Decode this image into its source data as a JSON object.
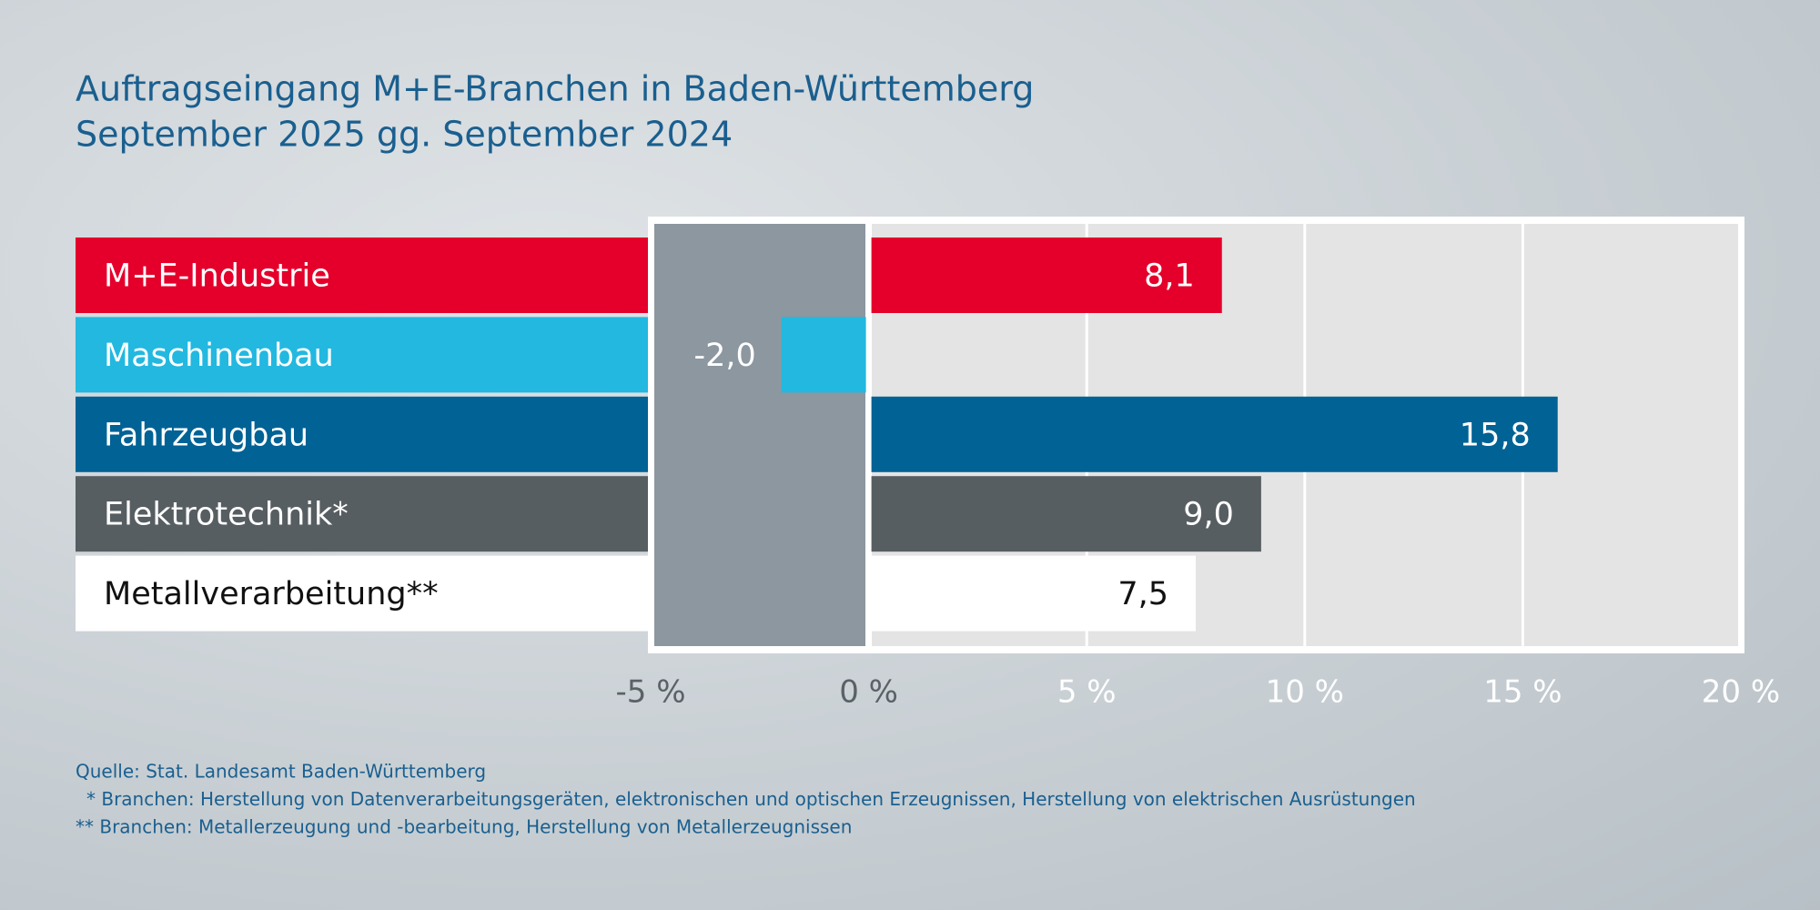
{
  "chart_data": {
    "type": "hbar",
    "title": "Auftragseingang M+E-Branchen in Baden-Württemberg",
    "subtitle": "September 2025 gg. September 2024",
    "categories": [
      "M+E-Industrie",
      "Maschinenbau",
      "Fahrzeugbau",
      "Elektrotechnik*",
      "Metallverarbeitung**"
    ],
    "values": [
      8.1,
      -2.0,
      15.8,
      9.0,
      7.5
    ],
    "value_labels": [
      "8,1",
      "-2,0",
      "15,8",
      "9,0",
      "7,5"
    ],
    "colors": [
      "#e4002b",
      "#22b8e0",
      "#006295",
      "#575e62",
      "#ffffff"
    ],
    "xlim": [
      -5,
      20
    ],
    "xticks": [
      {
        "value": -5,
        "label": "-5 %"
      },
      {
        "value": 0,
        "label": "0 %"
      },
      {
        "value": 5,
        "label": "5 %"
      },
      {
        "value": 10,
        "label": "10 %"
      },
      {
        "value": 15,
        "label": "15 %"
      },
      {
        "value": 20,
        "label": "20 %"
      }
    ],
    "grid": true,
    "notes": [
      "Quelle: Stat. Landesamt Baden-Württemberg",
      "* Branchen: Herstellung von Datenverarbeitungsgeräten, elektronischen und optischen Erzeugnissen, Herstellung von elektrischen Ausrüstungen",
      "** Branchen: Metallerzeugung und -bearbeitung, Herstellung von Metallerzeugnissen"
    ]
  }
}
